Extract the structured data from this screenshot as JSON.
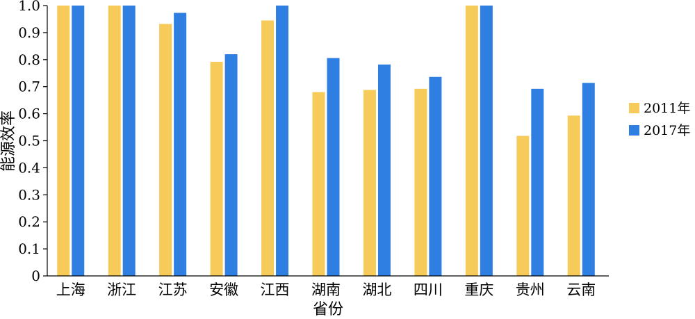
{
  "chart_data": {
    "type": "bar",
    "xlabel": "省份",
    "ylabel": "能源效率",
    "ylim": [
      0,
      1.0
    ],
    "yticks": [
      "0",
      "0.1",
      "0.2",
      "0.3",
      "0.4",
      "0.5",
      "0.6",
      "0.7",
      "0.8",
      "0.9",
      "1.0"
    ],
    "categories": [
      "上海",
      "浙江",
      "江苏",
      "安徽",
      "江西",
      "湖南",
      "湖北",
      "四川",
      "重庆",
      "贵州",
      "云南"
    ],
    "series": [
      {
        "name": "2011年",
        "color": "#F6CB5A",
        "values": [
          1.0,
          1.0,
          0.932,
          0.792,
          0.945,
          0.68,
          0.688,
          0.692,
          1.0,
          0.518,
          0.593
        ]
      },
      {
        "name": "2017年",
        "color": "#2F7FE2",
        "values": [
          1.0,
          1.0,
          0.973,
          0.82,
          1.0,
          0.806,
          0.782,
          0.736,
          1.0,
          0.692,
          0.714
        ]
      }
    ],
    "legend_position": "right",
    "grid": false
  }
}
